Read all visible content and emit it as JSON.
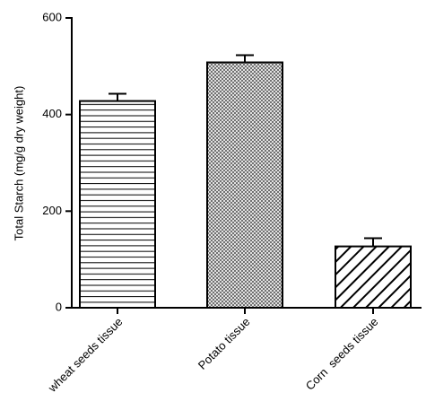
{
  "chart_data": {
    "type": "bar",
    "y_label": "Total Starch (mg/g dry weight)",
    "categories": [
      "wheat seeds tissue",
      "Potato tissue",
      "Corn  seeds tissue"
    ],
    "values": [
      428,
      508,
      127
    ],
    "errors": [
      15,
      15,
      17
    ],
    "patterns": [
      "horizontal",
      "crosshatch",
      "diagonal"
    ],
    "color": "#000000",
    "ylim": [
      0,
      600
    ],
    "yticks": [
      0,
      200,
      400,
      600
    ],
    "grid": false
  }
}
